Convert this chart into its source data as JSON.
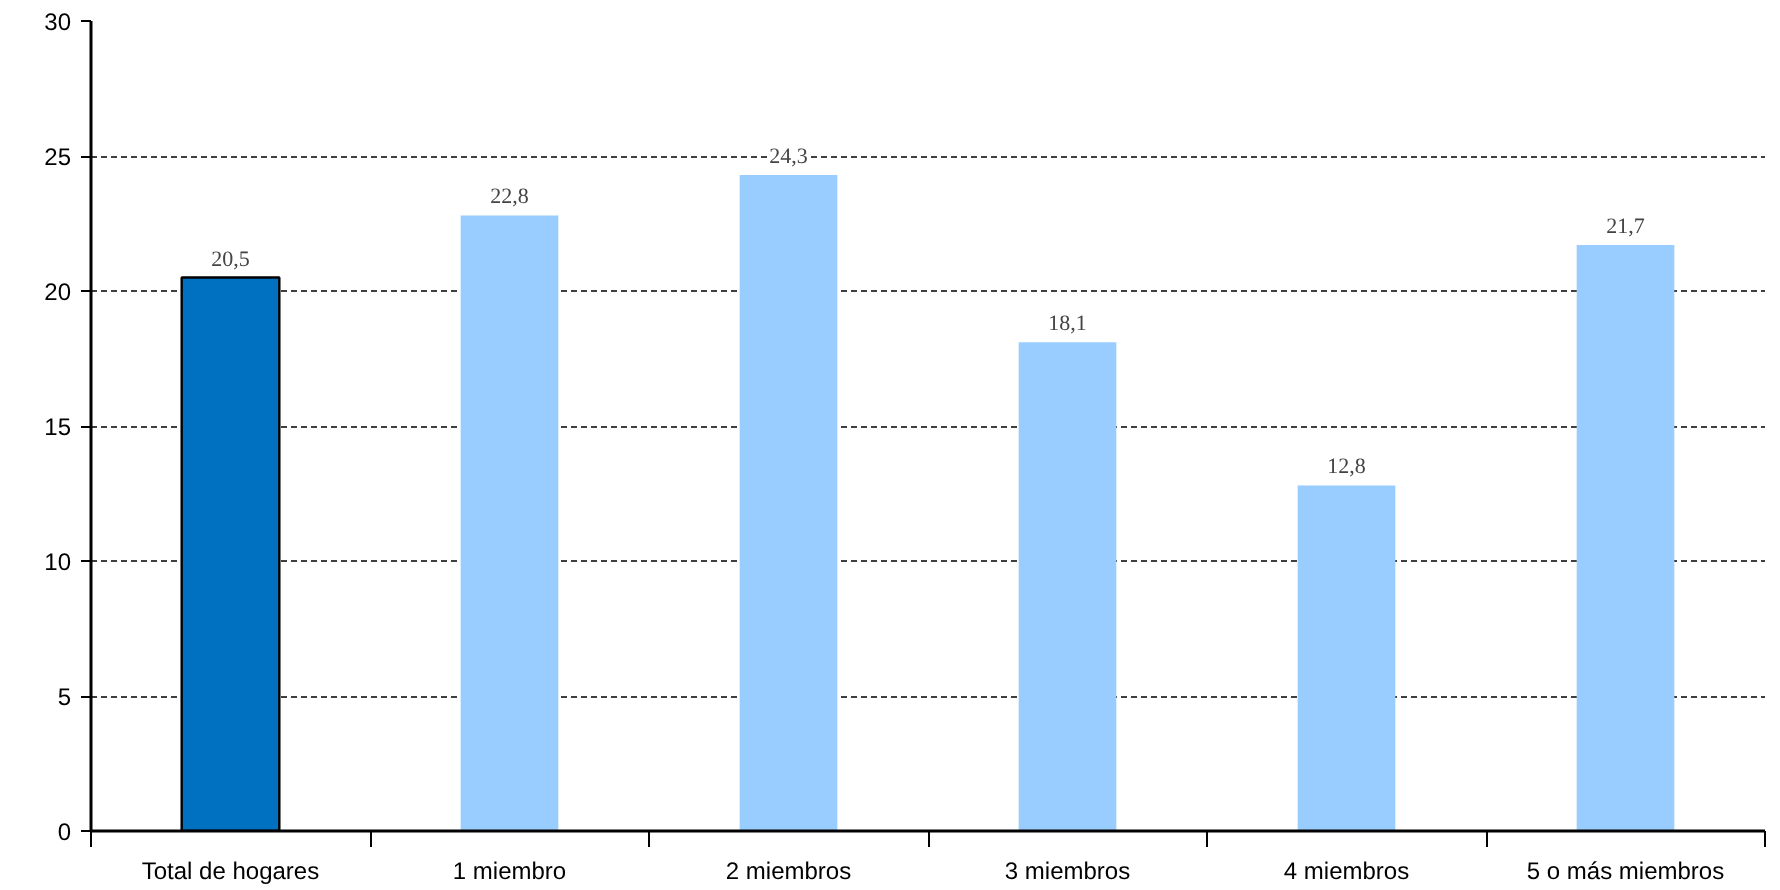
{
  "chart_data": {
    "type": "bar",
    "categories": [
      "Total de hogares",
      "1 miembro",
      "2 miembros",
      "3 miembros",
      "4 miembros",
      "5 o más miembros"
    ],
    "values": [
      20.5,
      22.8,
      24.3,
      18.1,
      12.8,
      21.7
    ],
    "colors": [
      "#0070c0",
      "#99ccff",
      "#99ccff",
      "#99ccff",
      "#99ccff",
      "#99ccff"
    ],
    "value_labels": [
      "20,5",
      "22,8",
      "24,3",
      "18,1",
      "12,8",
      "21,7"
    ],
    "ylim": [
      0,
      30
    ],
    "yticks": [
      0,
      5,
      10,
      15,
      20,
      25,
      30
    ],
    "grid": "y"
  }
}
